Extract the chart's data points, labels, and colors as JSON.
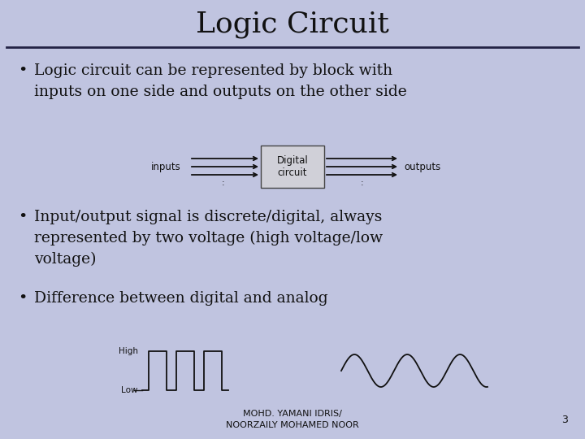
{
  "title_text": "Logic Circuit",
  "background_color": "#c0c4e0",
  "title_fontsize": 26,
  "title_font": "serif",
  "separator_color": "#222244",
  "bullet1": "Logic circuit can be represented by block with\ninputs on one side and outputs on the other side",
  "bullet2": "Input/output signal is discrete/digital, always\nrepresented by two voltage (high voltage/low\nvoltage)",
  "bullet3": "Difference between digital and analog",
  "bullet_fontsize": 13.5,
  "bullet_font": "serif",
  "footer_text": "MOHD. YAMANI IDRIS/\nNOORZAILY MOHAMED NOOR",
  "footer_fontsize": 8,
  "page_number": "3",
  "box_text": "Digital\ncircuit",
  "signal_color": "#111111",
  "text_color": "#111111"
}
